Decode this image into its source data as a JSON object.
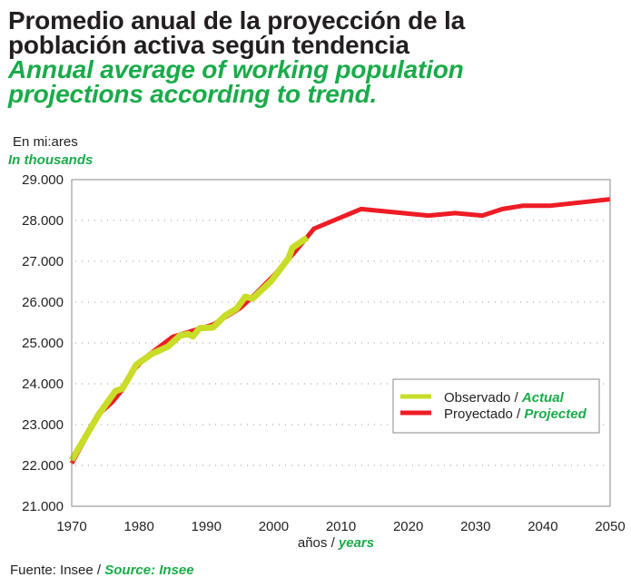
{
  "title": {
    "es": "Promedio anual de la proyección de la población activa según tendencia",
    "en": "Annual average of working population projections according to trend."
  },
  "units": {
    "es": "En mi:ares",
    "en": "In thousands"
  },
  "xaxis_label": {
    "es": "años / ",
    "en": "years"
  },
  "source": {
    "es": "Fuente: Insee / ",
    "en": "Source: Insee"
  },
  "colors": {
    "observed": "#c8dc28",
    "projected": "#ee1c25",
    "accent_green": "#1aab4a",
    "grid": "#9a9a9a",
    "frame": "#8a8a8a"
  },
  "chart_data": {
    "type": "line",
    "title": "Promedio anual de la proyección de la población activa según tendencia / Annual average of working population projections according to trend.",
    "xlabel": "años / years",
    "ylabel": "En miles / In thousands",
    "xlim": [
      1970,
      2050
    ],
    "ylim": [
      21000,
      29000
    ],
    "xticks": [
      1970,
      1980,
      1990,
      2000,
      2010,
      2020,
      2030,
      2040,
      2050
    ],
    "yticks": [
      21000,
      22000,
      23000,
      24000,
      25000,
      26000,
      27000,
      28000,
      29000
    ],
    "ytick_labels": [
      "21.000",
      "22.000",
      "23.000",
      "24.000",
      "25.000",
      "26.000",
      "27.000",
      "28.000",
      "29.000"
    ],
    "xtick_labels": [
      "1970",
      "1980",
      "1990",
      "2000",
      "2010",
      "2020",
      "2030",
      "2040",
      "2050"
    ],
    "grid": "horizontal dotted",
    "legend_position": "lower-right",
    "series": [
      {
        "name": "Proyectado / Projected",
        "name_es": "Proyectado / ",
        "name_en": "Projected",
        "color": "#ee1c25",
        "x": [
          1970,
          1974,
          1976,
          1977.5,
          1979,
          1981,
          1983,
          1985,
          1987,
          1989,
          1991,
          1993,
          1995,
          1997,
          2000,
          2003,
          2006,
          2013,
          2018,
          2023,
          2027,
          2031,
          2034,
          2037,
          2041,
          2046,
          2050
        ],
        "y": [
          22050,
          23250,
          23550,
          23850,
          24300,
          24650,
          24900,
          25150,
          25250,
          25350,
          25450,
          25650,
          25850,
          26150,
          26650,
          27200,
          27800,
          28280,
          28200,
          28120,
          28180,
          28120,
          28280,
          28360,
          28360,
          28450,
          28520
        ]
      },
      {
        "name": "Observado / Actual",
        "name_es": "Observado / ",
        "name_en": "Actual",
        "color": "#c8dc28",
        "x": [
          1970,
          1974,
          1976.5,
          1977.5,
          1978.5,
          1979.6,
          1981.9,
          1984.3,
          1986.1,
          1987.3,
          1988,
          1989,
          1991,
          1992.8,
          1994.5,
          1995.8,
          1996.9,
          1999.6,
          2002.2,
          2002.8,
          2005
        ],
        "y": [
          22130,
          23250,
          23820,
          23880,
          24150,
          24470,
          24730,
          24910,
          25180,
          25220,
          25160,
          25360,
          25380,
          25670,
          25840,
          26130,
          26090,
          26510,
          27070,
          27330,
          27580
        ]
      }
    ]
  }
}
